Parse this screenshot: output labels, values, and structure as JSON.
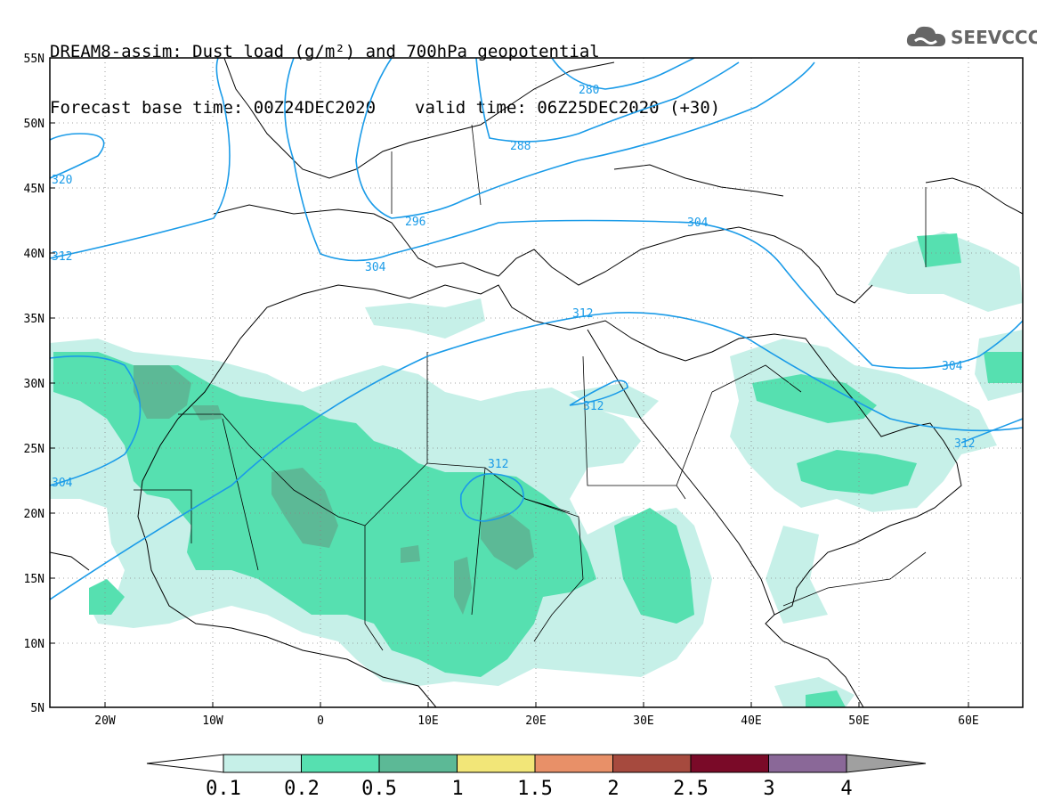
{
  "title": {
    "line1": "DREAM8-assim: Dust load (g/m²) and 700hPa geopotential",
    "base_time": "Forecast base time: 00Z24DEC2020",
    "valid_time": "valid time: 06Z25DEC2020 (+30)"
  },
  "logo": {
    "icon": "cloud-logo-icon",
    "text": "SEEVCCC"
  },
  "map": {
    "lat_labels": [
      "55N",
      "50N",
      "45N",
      "40N",
      "35N",
      "30N",
      "25N",
      "20N",
      "15N",
      "10N",
      "5N"
    ],
    "lon_labels": [
      "20W",
      "10W",
      "0",
      "10E",
      "20E",
      "30E",
      "40E",
      "50E",
      "60E"
    ],
    "contour_labels": [
      "280",
      "288",
      "296",
      "304",
      "312",
      "320"
    ]
  },
  "colorbar": {
    "tick_labels": [
      "0.1",
      "0.2",
      "0.5",
      "1",
      "1.5",
      "2",
      "2.5",
      "3",
      "4"
    ],
    "colors": [
      "#c6f0e8",
      "#56e0b0",
      "#5cb996",
      "#f2e678",
      "#e89068",
      "#a64a3e",
      "#7a0a28",
      "#8a6898"
    ],
    "under_color": "#ffffff",
    "over_color": "#a0a0a0"
  },
  "contour_color": "#1a9be8"
}
